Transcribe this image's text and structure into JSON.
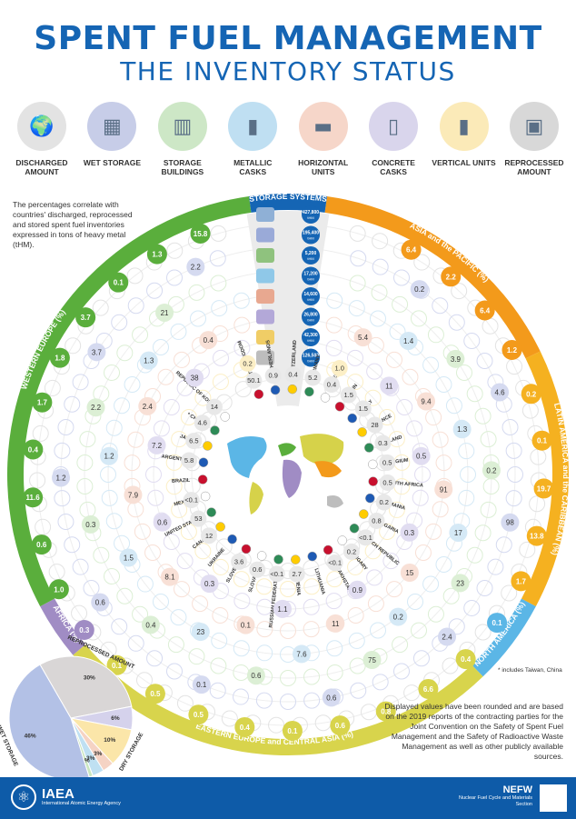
{
  "title": "SPENT FUEL MANAGEMENT",
  "subtitle": "THE INVENTORY STATUS",
  "legend_icons": [
    {
      "label": "DISCHARGED AMOUNT",
      "icon": "globe-icon",
      "color": "#e3e3e3"
    },
    {
      "label": "WET STORAGE",
      "icon": "wet-storage-icon",
      "color": "#c7cde8"
    },
    {
      "label": "STORAGE BUILDINGS",
      "icon": "storage-building-icon",
      "color": "#cde7c6"
    },
    {
      "label": "METALLIC CASKS",
      "icon": "metallic-cask-icon",
      "color": "#bfdff2"
    },
    {
      "label": "HORIZONTAL UNITS",
      "icon": "horizontal-unit-icon",
      "color": "#f6d6c9"
    },
    {
      "label": "CONCRETE CASKS",
      "icon": "concrete-cask-icon",
      "color": "#d9d5ec"
    },
    {
      "label": "VERTICAL UNITS",
      "icon": "vertical-unit-icon",
      "color": "#fbeab8"
    },
    {
      "label": "REPROCESSED AMOUNT",
      "icon": "reprocessed-icon",
      "color": "#d8d8d8"
    }
  ],
  "intro_text": "The percentages correlate with countries' discharged, reprocessed and stored spent fuel inventories expressed in tons of heavy metal (tHM).",
  "storage_systems": {
    "label": "STORAGE SYSTEMS",
    "items": [
      {
        "value": "427,800",
        "unit": "tHM"
      },
      {
        "value": "195,400",
        "unit": "tHM"
      },
      {
        "value": "5,200",
        "unit": "tHM"
      },
      {
        "value": "17,200",
        "unit": "tHM"
      },
      {
        "value": "14,600",
        "unit": "tHM"
      },
      {
        "value": "26,800",
        "unit": "tHM"
      },
      {
        "value": "42,300",
        "unit": "tHM"
      },
      {
        "value": "126,500",
        "unit": "tHM"
      }
    ]
  },
  "regions": [
    {
      "label": "ASIA and the PACIFIC (%)",
      "color": "#f39a1b"
    },
    {
      "label": "LATIN AMERICA and the CARIBBEAN (%)",
      "color": "#f5b120"
    },
    {
      "label": "NORTH AMERICA (%)",
      "color": "#5bb6e6"
    },
    {
      "label": "EASTERN EUROPE and CENTRAL ASIA (%)",
      "color": "#d8d44c"
    },
    {
      "label": "AFRICA (%)",
      "color": "#a08cc4"
    },
    {
      "label": "WESTERN EUROPE (%)",
      "color": "#5aae3c"
    }
  ],
  "countries": [
    {
      "name": "UNITED KINGDOM",
      "values": [
        "50.1",
        "0.2"
      ]
    },
    {
      "name": "NETHERLANDS",
      "values": [
        "0.9"
      ]
    },
    {
      "name": "SWITZERLAND",
      "values": [
        "0.4"
      ]
    },
    {
      "name": "GERMANY",
      "values": [
        "5.2"
      ]
    },
    {
      "name": "SWEDEN",
      "values": [
        "0.4",
        "1.0"
      ]
    },
    {
      "name": "SPAIN",
      "values": [
        "1.5"
      ]
    },
    {
      "name": "ITALY",
      "values": [
        "1.5"
      ]
    },
    {
      "name": "FRANCE",
      "values": [
        "28"
      ]
    },
    {
      "name": "FINLAND",
      "values": [
        "0.3"
      ]
    },
    {
      "name": "BELGIUM",
      "values": [
        "0.5"
      ]
    },
    {
      "name": "SOUTH AFRICA",
      "values": [
        "0.5"
      ]
    },
    {
      "name": "ROMANIA",
      "values": [
        "0.2"
      ]
    },
    {
      "name": "BULGARIA",
      "values": [
        "0.8"
      ]
    },
    {
      "name": "CZECH REPUBLIC",
      "values": [
        "<0.1"
      ]
    },
    {
      "name": "HUNGARY",
      "values": [
        "0.2"
      ]
    },
    {
      "name": "KAZAKHSTAN",
      "values": [
        "<0.1"
      ]
    },
    {
      "name": "LITHUANIA",
      "values": []
    },
    {
      "name": "ARMENIA",
      "values": [
        "2.7"
      ]
    },
    {
      "name": "RUSSIAN FEDERATION",
      "values": [
        "<0.1"
      ]
    },
    {
      "name": "SLOVAKIA",
      "values": [
        "0.6"
      ]
    },
    {
      "name": "SLOVENIA",
      "values": [
        "3.6"
      ]
    },
    {
      "name": "UKRAINE",
      "values": []
    },
    {
      "name": "CANADA",
      "values": [
        "12"
      ]
    },
    {
      "name": "UNITED STATES",
      "values": [
        "53"
      ]
    },
    {
      "name": "MEXICO",
      "values": [
        "<0.1"
      ]
    },
    {
      "name": "BRAZIL",
      "values": []
    },
    {
      "name": "ARGENTINA",
      "values": [
        "5.8"
      ]
    },
    {
      "name": "JAPAN",
      "values": [
        "6.5"
      ]
    },
    {
      "name": "* CHINA",
      "values": [
        "4.6"
      ]
    },
    {
      "name": "REPUBLIC OF KOREA",
      "values": [
        "14"
      ]
    }
  ],
  "outer_values": [
    "15.8",
    "1.3",
    "0.1",
    "3.7",
    "1.8",
    "1.7",
    "0.4",
    "11.6",
    "0.6",
    "1.0",
    "0.3",
    "0.1",
    "0.5",
    "0.5",
    "0.4",
    "0.1",
    "0.6",
    "0.8",
    "6.6",
    "0.4",
    "0.1",
    "1.7",
    "13.8",
    "19.7",
    "0.1",
    "0.2",
    "1.2",
    "6.4",
    "2.2",
    "6.4"
  ],
  "inner_values": [
    "2.2",
    "0.4",
    "21",
    "38",
    "1.3",
    "3.7",
    "2.4",
    "2.2",
    "7.2",
    "1.2",
    "1.2",
    "7.9",
    "0.3",
    "0.6",
    "1.5",
    "0.6",
    "8.1",
    "0.4",
    "0.3",
    "23",
    "0.1",
    "0.1",
    "0.6",
    "1.1",
    "7.6",
    "0.6",
    "11",
    "75",
    "0.9",
    "0.2",
    "2.4",
    "15",
    "23",
    "0.3",
    "17",
    "98",
    "91",
    "0.2",
    "0.5",
    "1.3",
    "4.6",
    "9.4",
    "3.9",
    "11",
    "1.4",
    "0.2",
    "5.4"
  ],
  "footnote": "* includes Taiwan, China",
  "note": "Displayed values have been rounded and are based on the 2019 reports of the contracting parties for the Joint Convention on the Safety of Spent Fuel Management and the Safety of Radioactive Waste Management as well as other publicly available sources.",
  "chart_data": {
    "type": "pie",
    "title": "",
    "slices": [
      {
        "label": "REPROCESSED AMOUNT",
        "value": 30,
        "color": "#d9d6d6"
      },
      {
        "label": "",
        "value": 6,
        "color": "#d5d2ec"
      },
      {
        "label": "DRY STORAGE",
        "value": 10,
        "color": "#fbe6a9"
      },
      {
        "label": "",
        "value": 3,
        "color": "#f5d3c4"
      },
      {
        "label": "",
        "value": 3,
        "color": "#bfe0f2"
      },
      {
        "label": "",
        "value": 1,
        "color": "#c9e6bf"
      },
      {
        "label": "WET STORAGE",
        "value": 46,
        "color": "#b3c1e6"
      }
    ],
    "value_labels": [
      "30%",
      "6%",
      "10%",
      "3%",
      "3%",
      "1%",
      "46%"
    ]
  },
  "footer": {
    "org": "IAEA",
    "org_full": "International Atomic Energy Agency",
    "dept": "NEFW",
    "dept_full": "Nuclear Fuel Cycle and Materials Section"
  }
}
